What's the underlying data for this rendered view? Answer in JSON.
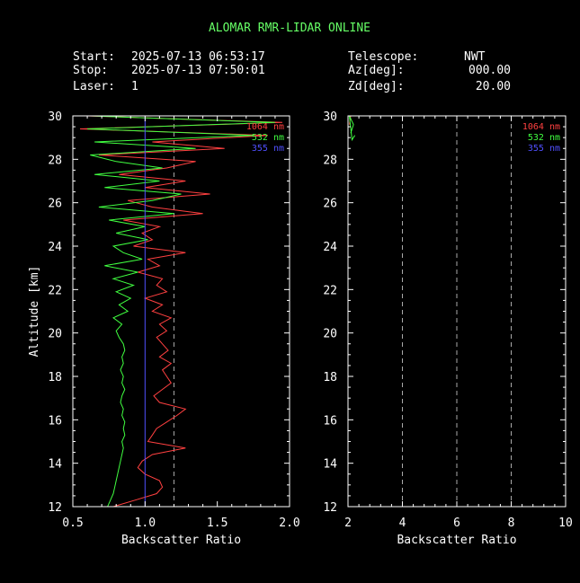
{
  "title": "ALOMAR RMR-LIDAR ONLINE",
  "header": {
    "start_label": "Start:",
    "start_value": "2025-07-13 06:53:17",
    "stop_label": "Stop:",
    "stop_value": "2025-07-13 07:50:01",
    "laser_label": "Laser:",
    "laser_value": "1",
    "telescope_label": "Telescope:",
    "telescope_value": "NWT",
    "az_label": "Az[deg]:",
    "az_value": "000.00",
    "zd_label": "Zd[deg]:",
    "zd_value": "20.00"
  },
  "colors": {
    "background": "#000000",
    "title": "#66ff66",
    "axes": "#ffffff",
    "ch1064": "#ff4040",
    "ch532": "#40ff40",
    "ch355": "#5050ff",
    "dashed": "#aaaaaa"
  },
  "chart_data": [
    {
      "type": "line",
      "xlabel": "Backscatter Ratio",
      "ylabel": "Altitude [km]",
      "xlim": [
        0.5,
        2.0
      ],
      "ylim": [
        12,
        30
      ],
      "xticks": [
        "0.5",
        "1.0",
        "1.5",
        "2.0"
      ],
      "yticks": [
        "12",
        "14",
        "16",
        "18",
        "20",
        "22",
        "24",
        "26",
        "28",
        "30"
      ],
      "reference_lines": [
        1.0,
        1.2
      ],
      "legend_position": "top-right",
      "series": [
        {
          "name": "1064 nm",
          "y": [
            12.0,
            12.3,
            12.6,
            12.9,
            13.2,
            13.5,
            13.8,
            14.1,
            14.4,
            14.7,
            15.0,
            15.3,
            15.6,
            15.9,
            16.2,
            16.5,
            16.8,
            17.1,
            17.4,
            17.7,
            18.0,
            18.3,
            18.6,
            18.9,
            19.2,
            19.5,
            19.8,
            20.1,
            20.4,
            20.7,
            21.0,
            21.3,
            21.6,
            21.9,
            22.2,
            22.5,
            22.8,
            23.1,
            23.4,
            23.7,
            24.0,
            24.3,
            24.6,
            24.9,
            25.2,
            25.5,
            25.8,
            26.1,
            26.4,
            26.7,
            27.0,
            27.3,
            27.6,
            27.9,
            28.2,
            28.5,
            28.8,
            29.1,
            29.4,
            29.7,
            30.0
          ],
          "x": [
            0.78,
            0.93,
            1.08,
            1.12,
            1.1,
            1.0,
            0.95,
            0.98,
            1.05,
            1.28,
            1.02,
            1.05,
            1.08,
            1.15,
            1.22,
            1.28,
            1.1,
            1.06,
            1.12,
            1.18,
            1.15,
            1.12,
            1.18,
            1.1,
            1.16,
            1.12,
            1.08,
            1.15,
            1.1,
            1.18,
            1.05,
            1.12,
            1.0,
            1.15,
            1.08,
            1.12,
            0.95,
            1.1,
            1.02,
            1.28,
            0.92,
            1.05,
            0.98,
            1.1,
            0.85,
            1.4,
            1.05,
            0.88,
            1.45,
            1.0,
            1.28,
            0.82,
            1.15,
            1.35,
            0.68,
            1.55,
            1.05,
            1.85,
            0.55,
            1.95,
            0.6
          ]
        },
        {
          "name": "532 nm",
          "y": [
            12.0,
            12.3,
            12.6,
            12.9,
            13.2,
            13.5,
            13.8,
            14.1,
            14.4,
            14.7,
            15.0,
            15.3,
            15.6,
            15.9,
            16.2,
            16.5,
            16.8,
            17.1,
            17.4,
            17.7,
            18.0,
            18.3,
            18.6,
            18.9,
            19.2,
            19.5,
            19.8,
            20.1,
            20.4,
            20.7,
            21.0,
            21.3,
            21.6,
            21.9,
            22.2,
            22.5,
            22.8,
            23.1,
            23.4,
            23.7,
            24.0,
            24.3,
            24.6,
            24.9,
            25.2,
            25.5,
            25.8,
            26.1,
            26.4,
            26.7,
            27.0,
            27.3,
            27.6,
            27.9,
            28.2,
            28.5,
            28.8,
            29.1,
            29.4,
            29.7,
            30.0
          ],
          "x": [
            0.74,
            0.76,
            0.78,
            0.79,
            0.8,
            0.81,
            0.82,
            0.83,
            0.84,
            0.85,
            0.84,
            0.86,
            0.85,
            0.86,
            0.84,
            0.85,
            0.83,
            0.84,
            0.86,
            0.84,
            0.85,
            0.83,
            0.85,
            0.84,
            0.86,
            0.85,
            0.82,
            0.8,
            0.84,
            0.78,
            0.88,
            0.82,
            0.9,
            0.8,
            0.92,
            0.78,
            0.95,
            0.72,
            0.98,
            0.85,
            0.78,
            1.02,
            0.8,
            1.0,
            0.75,
            1.2,
            0.68,
            1.05,
            1.25,
            0.72,
            1.1,
            0.65,
            1.12,
            0.8,
            0.62,
            1.35,
            0.65,
            1.75,
            0.6,
            1.9,
            0.62
          ]
        },
        {
          "name": "355 nm",
          "y": [
            12.0,
            30.0
          ],
          "x": [
            1.0,
            1.0
          ]
        }
      ]
    },
    {
      "type": "line",
      "xlabel": "Backscatter Ratio",
      "ylabel": "",
      "xlim": [
        2,
        10
      ],
      "ylim": [
        12,
        30
      ],
      "xticks": [
        "2",
        "4",
        "6",
        "8",
        "10"
      ],
      "yticks": [
        "12",
        "14",
        "16",
        "18",
        "20",
        "22",
        "24",
        "26",
        "28",
        "30"
      ],
      "reference_lines": [
        4,
        6,
        8
      ],
      "legend_position": "top-right",
      "series": [
        {
          "name": "1064 nm",
          "y": [
            29.6,
            30.0
          ],
          "x": [
            2.05,
            2.1
          ]
        },
        {
          "name": "532 nm",
          "y": [
            29.2,
            29.6,
            30.0,
            28.9,
            29.1
          ],
          "x": [
            2.1,
            2.2,
            2.05,
            2.15,
            2.25
          ]
        },
        {
          "name": "355 nm",
          "y": [],
          "x": []
        }
      ]
    }
  ]
}
